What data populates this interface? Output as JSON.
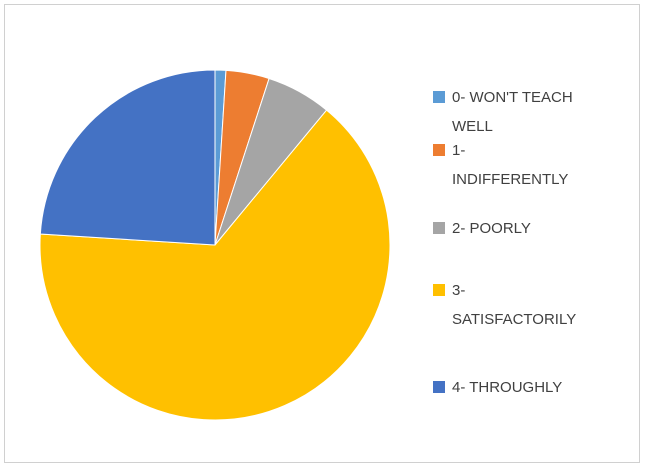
{
  "chart_data": {
    "type": "pie",
    "categories": [
      "0- WON'T TEACH WELL",
      "1- INDIFFERENTLY",
      "2- POORLY",
      "3- SATISFACTORILY",
      "4- THROUGHLY"
    ],
    "values": [
      1,
      4,
      6,
      65,
      24
    ],
    "colors": [
      "#5b9bd5",
      "#ed7d31",
      "#a5a5a5",
      "#ffc000",
      "#4472c4"
    ],
    "legend": "right"
  }
}
